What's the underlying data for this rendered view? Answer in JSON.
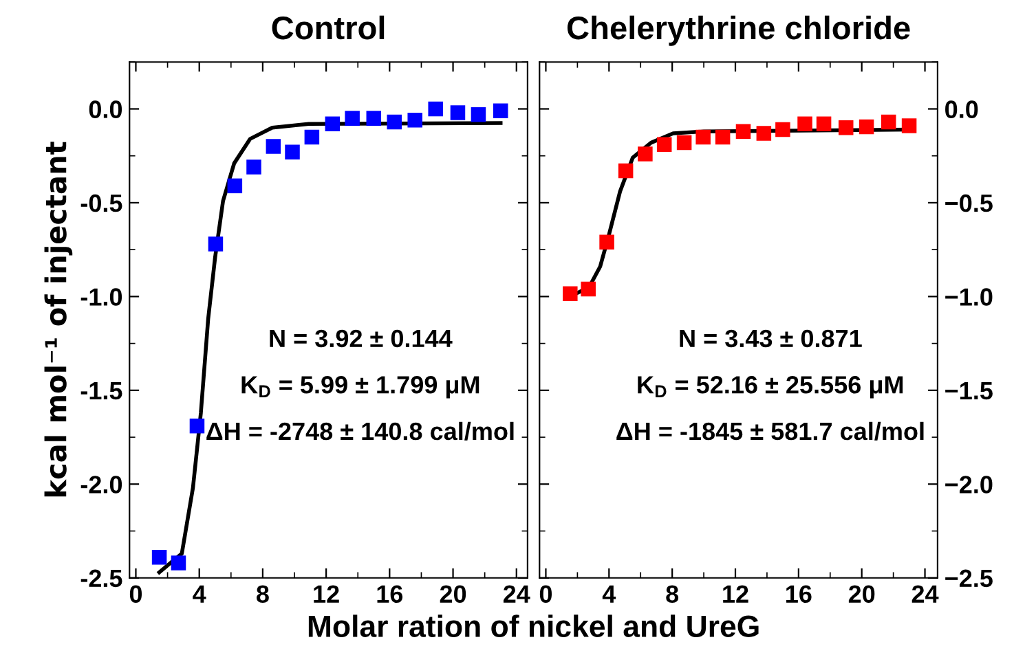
{
  "chart_data": [
    {
      "type": "scatter",
      "title": "Control",
      "xlabel": "Molar ration of nickel and UreG",
      "ylabel": "kcal mol⁻¹ of injectant",
      "xlim": [
        -0.4,
        24.7
      ],
      "xticks": [
        0,
        4,
        8,
        12,
        16,
        20,
        24
      ],
      "ylim": [
        -2.5,
        0.25
      ],
      "yticks": [
        -2.5,
        {
          "value": -2.0,
          "label": "-2.0"
        },
        -1.5,
        {
          "value": -1.0,
          "label": "-1.0"
        },
        -0.5,
        {
          "value": 0,
          "label": "0.0"
        }
      ],
      "grid": false,
      "legend": false,
      "annotations": [
        "N = 3.92 ± 0.144",
        "K$_{D}$ = 5.99 ± 1.799 μM",
        "ΔH = -2748 ± 140.8 cal/mol"
      ],
      "series": [
        {
          "color": "#0000ff",
          "marker": "square",
          "x": [
            1.48,
            2.69,
            3.86,
            5.03,
            6.24,
            7.44,
            8.67,
            9.87,
            11.1,
            12.4,
            13.65,
            15.0,
            16.3,
            17.6,
            18.9,
            20.3,
            21.6,
            23.0
          ],
          "values": [
            -2.39,
            -2.42,
            -1.69,
            -0.72,
            -0.41,
            -0.31,
            -0.2,
            -0.23,
            -0.15,
            -0.08,
            -0.05,
            -0.05,
            -0.07,
            -0.06,
            0.0,
            -0.02,
            -0.03,
            -0.01
          ]
        },
        {
          "type": "line",
          "color": "#000000",
          "marker": "none",
          "line_style": "solid",
          "x": [
            1.48,
            2.9,
            3.6,
            4.1,
            4.56,
            5.0,
            5.5,
            6.2,
            7.2,
            8.6,
            10.9,
            23.0
          ],
          "values": [
            -2.47,
            -2.37,
            -2.02,
            -1.62,
            -1.12,
            -0.79,
            -0.49,
            -0.29,
            -0.16,
            -0.1,
            -0.08,
            -0.075
          ]
        }
      ]
    },
    {
      "type": "scatter",
      "title": "Chelerythrine chloride",
      "xlim": [
        -0.4,
        24.8
      ],
      "xticks": [
        0,
        4,
        8,
        12,
        16,
        20,
        24
      ],
      "y2lim": [
        -2.5,
        0.25
      ],
      "y2ticks": [
        {
          "value": -2.5,
          "label": "−2.5"
        },
        {
          "value": -2.0,
          "label": "−2.0"
        },
        {
          "value": -1.5,
          "label": "−1.5"
        },
        {
          "value": -1.0,
          "label": "−1.0"
        },
        {
          "value": -0.5,
          "label": "−0.5"
        },
        {
          "value": 0,
          "label": "0.0"
        }
      ],
      "grid": false,
      "legend": false,
      "annotations": [
        "N = 3.43 ± 0.871",
        "K$_{D}$ = 52.16 ± 25.556 μM",
        "ΔH = -1845 ± 581.7 cal/mol"
      ],
      "series": [
        {
          "axis": "y2",
          "color": "#ff0000",
          "marker": "square",
          "x": [
            1.54,
            2.69,
            3.86,
            5.06,
            6.29,
            7.5,
            8.76,
            9.96,
            11.2,
            12.5,
            13.8,
            15.0,
            16.4,
            17.6,
            19.0,
            20.3,
            21.7,
            23.0
          ],
          "values": [
            -0.985,
            -0.96,
            -0.71,
            -0.33,
            -0.24,
            -0.19,
            -0.18,
            -0.15,
            -0.15,
            -0.12,
            -0.13,
            -0.11,
            -0.08,
            -0.08,
            -0.1,
            -0.095,
            -0.07,
            -0.09
          ]
        },
        {
          "type": "line",
          "axis": "y2",
          "color": "#000000",
          "marker": "none",
          "line_style": "solid",
          "x": [
            1.54,
            2.74,
            3.44,
            4.0,
            4.7,
            5.5,
            6.66,
            8.06,
            10.0,
            23.0
          ],
          "values": [
            -1.0,
            -0.95,
            -0.84,
            -0.67,
            -0.44,
            -0.26,
            -0.18,
            -0.13,
            -0.12,
            -0.11
          ]
        }
      ]
    }
  ]
}
